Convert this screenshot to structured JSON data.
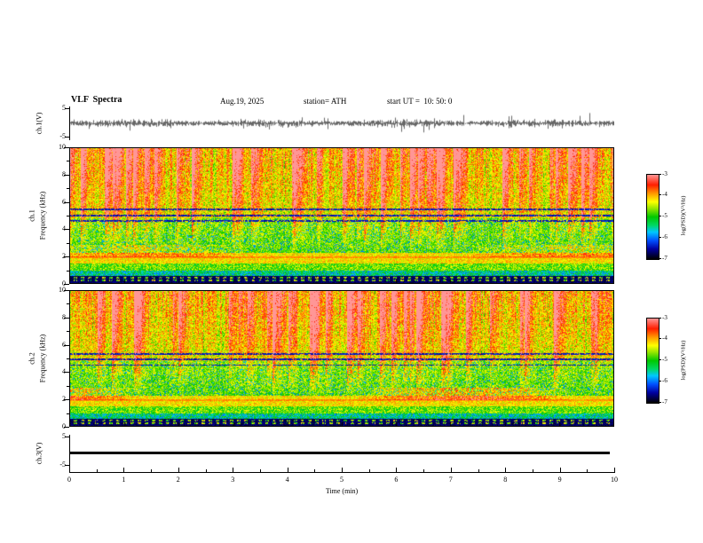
{
  "header": {
    "title": "VLF  Spectra",
    "date": "Aug.19, 2025",
    "station": "station= ATH",
    "start_ut": "start UT =  10: 50: 0"
  },
  "panels": {
    "ch1_wave": {
      "ylabel": "ch.1(V)",
      "yticks": [
        "5",
        "-5"
      ]
    },
    "ch1_spec": {
      "label": "ch.1",
      "ylabel": "Frequency  (kHz)"
    },
    "ch2_spec": {
      "label": "ch.2",
      "ylabel": "Frequency  (kHz)"
    },
    "ch3_wave": {
      "ylabel": "ch.3(V)",
      "yticks": [
        "5",
        "-5"
      ]
    }
  },
  "spec_yticks": [
    10,
    8,
    6,
    4,
    2,
    0
  ],
  "xaxis": {
    "label": "Time  (min)",
    "ticks": [
      0,
      1,
      2,
      3,
      4,
      5,
      6,
      7,
      8,
      9,
      10
    ]
  },
  "colorbar": {
    "label": "log(PSD)(V²/Hz)",
    "ticks": [
      -3,
      -4,
      -5,
      -6,
      -7
    ],
    "stops": [
      {
        "t": 0.0,
        "c": "#000000"
      },
      {
        "t": 0.12,
        "c": "#0000a0"
      },
      {
        "t": 0.22,
        "c": "#0050ff"
      },
      {
        "t": 0.32,
        "c": "#00c8ff"
      },
      {
        "t": 0.4,
        "c": "#00d864"
      },
      {
        "t": 0.5,
        "c": "#00c800"
      },
      {
        "t": 0.6,
        "c": "#96e600"
      },
      {
        "t": 0.68,
        "c": "#ffff00"
      },
      {
        "t": 0.78,
        "c": "#ff9600"
      },
      {
        "t": 0.88,
        "c": "#ff1e00"
      },
      {
        "t": 1.0,
        "c": "#ff9696"
      }
    ]
  },
  "chart_data": [
    {
      "panel": "ch.1 waveform",
      "type": "line",
      "ylabel": "ch.1(V)",
      "ylim": [
        -5,
        5
      ],
      "xlim_min": [
        0,
        10
      ],
      "summary": "continuous broadband noise waveform, mean 0 V, typical amplitude about ±1.5 V with frequent spikes toward ±5 V across the whole 0-10 min record"
    },
    {
      "panel": "ch.1 spectrogram",
      "type": "heatmap",
      "ylabel": "Frequency (kHz)",
      "ylim_kHz": [
        0,
        10
      ],
      "xlim_min": [
        0,
        10
      ],
      "colorbar_label": "log(PSD)(V²/Hz)",
      "zlim": [
        -7,
        -3
      ],
      "features": [
        "black band (PSD near -7) below about 0.5 kHz containing dotted/dashed harmonic rows",
        "bright yellow-orange band (PSD near -4.5) around 1.5-2.2 kHz with a continuous orange line near 1.9 kHz",
        "green background (PSD near -5.4) with cyan speckles between about 2 and 5 kHz",
        "dark dashed horizontal interference lines near 4.6, 5.0 and 5.45 kHz",
        "dense red vertical transient/sferic streaks (PSD above -4) dominating 5-10 kHz for the whole record, some reaching down to about 2.5 kHz"
      ]
    },
    {
      "panel": "ch.2 spectrogram",
      "type": "heatmap",
      "ylabel": "Frequency (kHz)",
      "ylim_kHz": [
        0,
        10
      ],
      "xlim_min": [
        0,
        10
      ],
      "colorbar_label": "log(PSD)(V²/Hz)",
      "zlim": [
        -7,
        -3
      ],
      "features": [
        "black band (PSD near -7) below about 0.5 kHz with dotted harmonic rows",
        "bright yellow band around 1.5-2.3 kHz plus patchy tan/orange smears between 2 and 2.8 kHz",
        "green background with cyan speckles from 2 to 5 kHz",
        "dark dashed horizontal interference lines near 4.5, 4.95 and 5.35 kHz",
        "red vertical transient streaks above about 5 kHz throughout the record, slightly denser than ch.1"
      ]
    },
    {
      "panel": "ch.3 waveform",
      "type": "line",
      "ylabel": "ch.3(V)",
      "ylim": [
        -5,
        5
      ],
      "xlim_min": [
        0,
        10
      ],
      "summary": "perfectly flat thick line at 0 V for the full 0-10 min (channel inactive / no signal)"
    }
  ]
}
